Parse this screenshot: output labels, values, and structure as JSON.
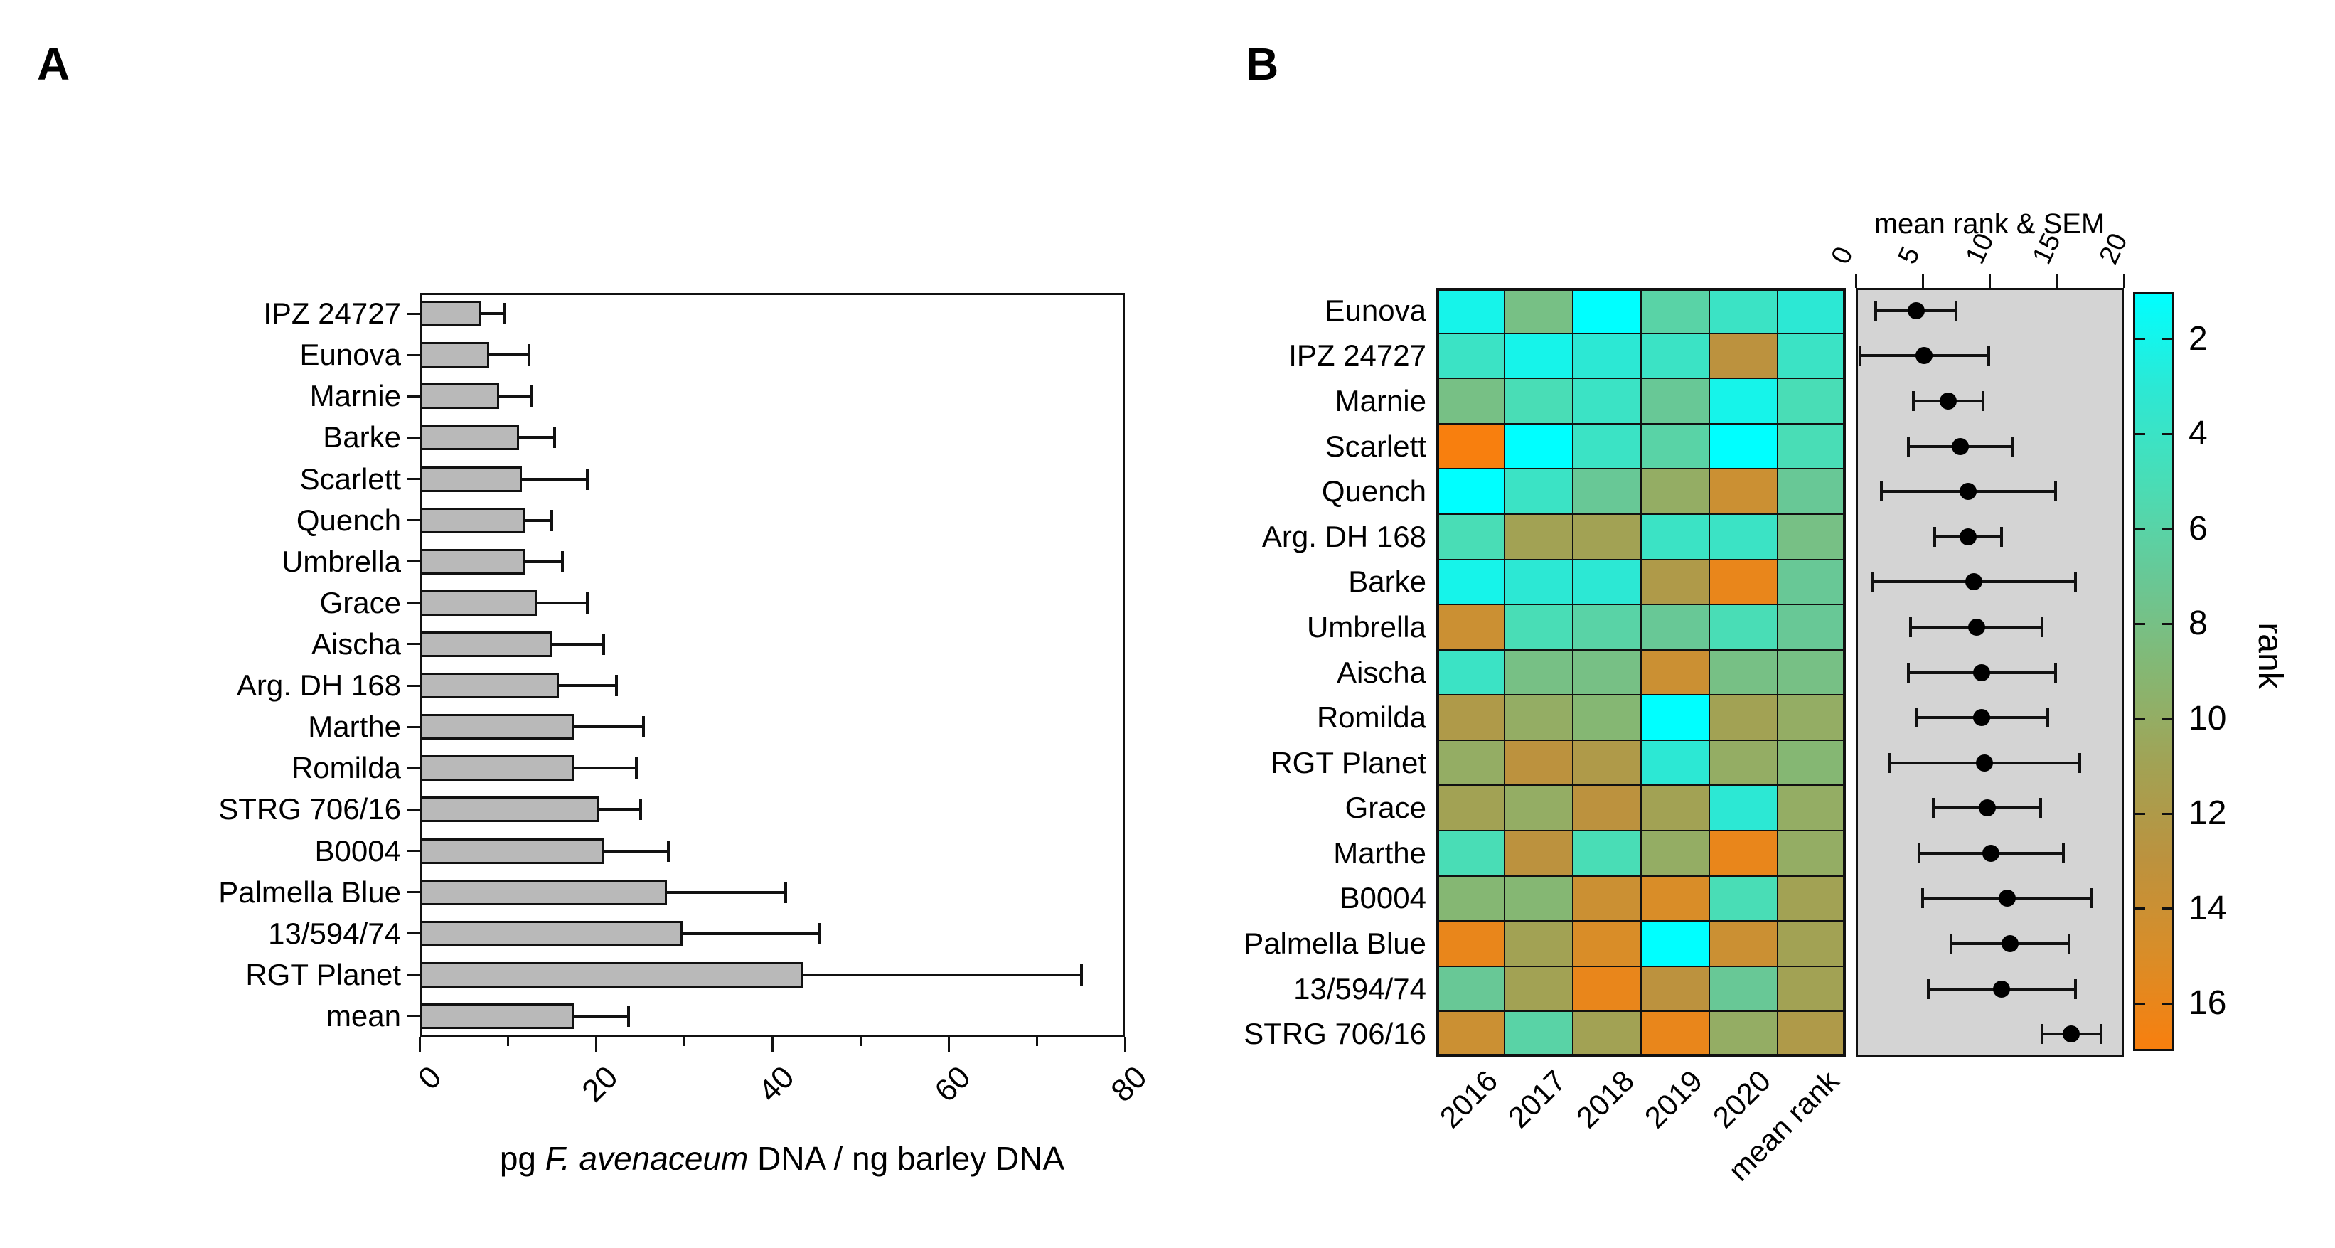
{
  "figure": {
    "panel_a_label": "A",
    "panel_b_label": "B"
  },
  "chart_data": [
    {
      "type": "bar",
      "orientation": "horizontal",
      "panel": "A",
      "xlabel": {
        "prefix": "pg ",
        "italic": "F. avenaceum",
        "suffix": " DNA / ng barley DNA"
      },
      "xlim": [
        0,
        80
      ],
      "xticks": [
        0,
        20,
        40,
        60,
        80
      ],
      "minor_xticks": [
        10,
        30,
        50,
        70
      ],
      "bar_color": "#b9b9b9",
      "categories": [
        "IPZ 24727",
        "Eunova",
        "Marnie",
        "Barke",
        "Scarlett",
        "Quench",
        "Umbrella",
        "Grace",
        "Aischa",
        "Arg. DH 168",
        "Marthe",
        "Romilda",
        "STRG 706/16",
        "B0004",
        "Palmella Blue",
        "13/594/74",
        "RGT Planet",
        "mean"
      ],
      "values": [
        7.0,
        7.9,
        9.0,
        11.3,
        11.6,
        11.9,
        12.0,
        13.3,
        15.0,
        15.8,
        17.5,
        17.5,
        20.3,
        21.0,
        28.1,
        29.8,
        43.5,
        17.5
      ],
      "upper_errors": [
        2.6,
        4.5,
        3.7,
        4.0,
        7.4,
        3.1,
        4.2,
        5.7,
        5.9,
        6.5,
        7.9,
        7.1,
        4.8,
        7.2,
        13.4,
        15.5,
        31.6,
        6.2
      ]
    },
    {
      "type": "heatmap",
      "panel": "B",
      "columns": [
        "2016",
        "2017",
        "2018",
        "2019",
        "2020",
        "mean rank"
      ],
      "rows": [
        {
          "name": "Eunova",
          "ranks": [
            2,
            8,
            1,
            6,
            4,
            3
          ]
        },
        {
          "name": "IPZ 24727",
          "ranks": [
            4,
            2,
            3,
            4,
            13,
            4
          ]
        },
        {
          "name": "Marnie",
          "ranks": [
            8,
            5,
            4,
            7,
            2,
            5
          ]
        },
        {
          "name": "Scarlett",
          "ranks": [
            17,
            1,
            4,
            6,
            1,
            5
          ]
        },
        {
          "name": "Quench",
          "ranks": [
            1,
            4,
            7,
            10,
            14,
            7
          ]
        },
        {
          "name": "Arg. DH 168",
          "ranks": [
            5,
            11,
            11,
            4,
            4,
            8
          ]
        },
        {
          "name": "Barke",
          "ranks": [
            2,
            3,
            3,
            12,
            16,
            7
          ]
        },
        {
          "name": "Umbrella",
          "ranks": [
            14,
            5,
            6,
            7,
            5,
            7
          ]
        },
        {
          "name": "Aischa",
          "ranks": [
            4,
            8,
            8,
            14,
            8,
            8
          ]
        },
        {
          "name": "Romilda",
          "ranks": [
            12,
            10,
            9,
            1,
            11,
            10
          ]
        },
        {
          "name": "RGT Planet",
          "ranks": [
            10,
            13,
            12,
            3,
            10,
            9
          ]
        },
        {
          "name": "Grace",
          "ranks": [
            11,
            10,
            13,
            11,
            3,
            10
          ]
        },
        {
          "name": "Marthe",
          "ranks": [
            5,
            13,
            5,
            10,
            16,
            10
          ]
        },
        {
          "name": "B0004",
          "ranks": [
            9,
            9,
            14,
            15,
            5,
            11
          ]
        },
        {
          "name": "Palmella Blue",
          "ranks": [
            16,
            11,
            15,
            1,
            14,
            11
          ]
        },
        {
          "name": "13/594/74",
          "ranks": [
            7,
            11,
            16,
            13,
            7,
            11
          ]
        },
        {
          "name": "STRG 706/16",
          "ranks": [
            14,
            6,
            11,
            16,
            10,
            12
          ]
        }
      ],
      "dot_plot": {
        "title": "mean rank & SEM",
        "xlim": [
          0,
          20
        ],
        "ticks": [
          0,
          5,
          10,
          15,
          20
        ],
        "background": "#d4d4d4",
        "means": [
          4.5,
          5.1,
          6.9,
          7.8,
          8.4,
          8.4,
          8.8,
          9.0,
          9.4,
          9.4,
          9.6,
          9.8,
          10.1,
          11.3,
          11.5,
          10.9,
          16.1
        ],
        "sems": [
          3.0,
          4.8,
          2.6,
          3.9,
          6.5,
          2.5,
          7.6,
          4.9,
          5.5,
          4.9,
          7.1,
          4.0,
          5.4,
          6.3,
          4.4,
          5.5,
          2.2
        ]
      },
      "color_scale": {
        "label": "rank",
        "min": 1,
        "max": 17,
        "ticks": [
          2,
          4,
          6,
          8,
          10,
          12,
          14,
          16
        ],
        "top_color": "#00ffff",
        "bottom_color": "#f87f0e"
      }
    }
  ]
}
